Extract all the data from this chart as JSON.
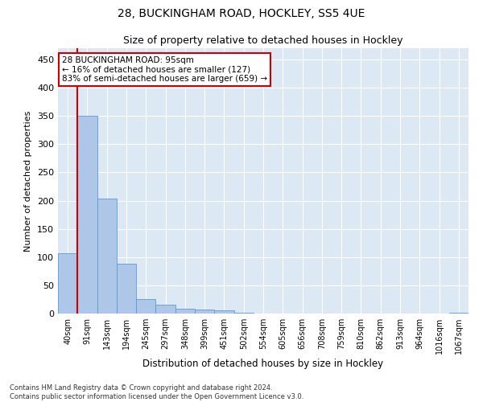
{
  "title_line1": "28, BUCKINGHAM ROAD, HOCKLEY, SS5 4UE",
  "title_line2": "Size of property relative to detached houses in Hockley",
  "xlabel": "Distribution of detached houses by size in Hockley",
  "ylabel": "Number of detached properties",
  "categories": [
    "40sqm",
    "91sqm",
    "143sqm",
    "194sqm",
    "245sqm",
    "297sqm",
    "348sqm",
    "399sqm",
    "451sqm",
    "502sqm",
    "554sqm",
    "605sqm",
    "656sqm",
    "708sqm",
    "759sqm",
    "810sqm",
    "862sqm",
    "913sqm",
    "964sqm",
    "1016sqm",
    "1067sqm"
  ],
  "values": [
    107,
    350,
    203,
    88,
    25,
    15,
    9,
    7,
    5,
    2,
    0,
    0,
    0,
    0,
    0,
    0,
    0,
    0,
    0,
    0,
    2
  ],
  "bar_color": "#aec6e8",
  "bar_edge_color": "#5b9bd5",
  "vline_color": "#cc0000",
  "vline_x_index": 1,
  "annotation_text": "28 BUCKINGHAM ROAD: 95sqm\n← 16% of detached houses are smaller (127)\n83% of semi-detached houses are larger (659) →",
  "annotation_box_color": "#ffffff",
  "annotation_box_edge": "#cc0000",
  "ylim": [
    0,
    470
  ],
  "yticks": [
    0,
    50,
    100,
    150,
    200,
    250,
    300,
    350,
    400,
    450
  ],
  "background_color": "#dce9f5",
  "grid_color": "#ffffff",
  "title_fontsize": 10,
  "subtitle_fontsize": 9,
  "footnote": "Contains HM Land Registry data © Crown copyright and database right 2024.\nContains public sector information licensed under the Open Government Licence v3.0."
}
